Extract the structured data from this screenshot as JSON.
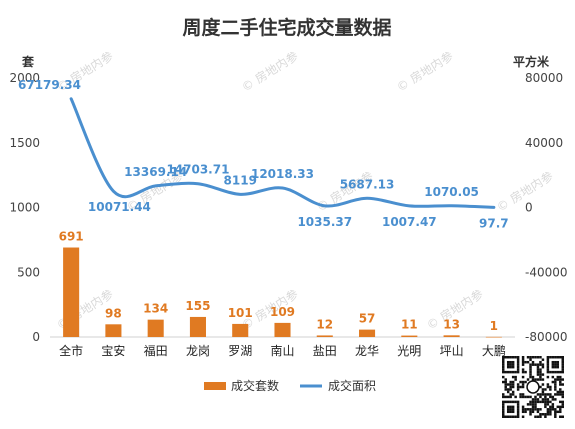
{
  "chart_data": {
    "type": "bar",
    "title": "周度二手住宅成交量数据",
    "categories": [
      "全市",
      "宝安",
      "福田",
      "龙岗",
      "罗湖",
      "南山",
      "盐田",
      "龙华",
      "光明",
      "坪山",
      "大鹏"
    ],
    "series": [
      {
        "name": "成交套数",
        "type": "bar",
        "axis": "left",
        "color": "#e07a22",
        "values": [
          691,
          98,
          134,
          155,
          101,
          109,
          12,
          57,
          11,
          13,
          1
        ],
        "labels": [
          "691",
          "98",
          "134",
          "155",
          "101",
          "109",
          "12",
          "57",
          "11",
          "13",
          "1"
        ]
      },
      {
        "name": "成交面积",
        "type": "line",
        "axis": "right",
        "color": "#4a8fcf",
        "values": [
          67179.34,
          10071.44,
          13369.14,
          14703.71,
          8119,
          12018.33,
          1035.37,
          5687.13,
          1007.47,
          1070.05,
          97.7
        ],
        "labels": [
          "67179.34",
          "10071.44",
          "13369.14",
          "14703.71",
          "8119",
          "12018.33",
          "1035.37",
          "5687.13",
          "1007.47",
          "1070.05",
          "97.7"
        ]
      }
    ],
    "y_left": {
      "label": "套",
      "ylim": [
        0,
        2000
      ],
      "ticks": [
        "0",
        "500",
        "1000",
        "1500",
        "2000"
      ]
    },
    "y_right": {
      "label": "平方米",
      "ylim": [
        -80000,
        80000
      ],
      "ticks": [
        "-80000",
        "-40000",
        "0",
        "40000",
        "80000"
      ]
    },
    "grid": false,
    "legend": "bottom"
  },
  "watermark": "房地内参",
  "colors": {
    "bar": "#e07a22",
    "line": "#4a8fcf"
  }
}
